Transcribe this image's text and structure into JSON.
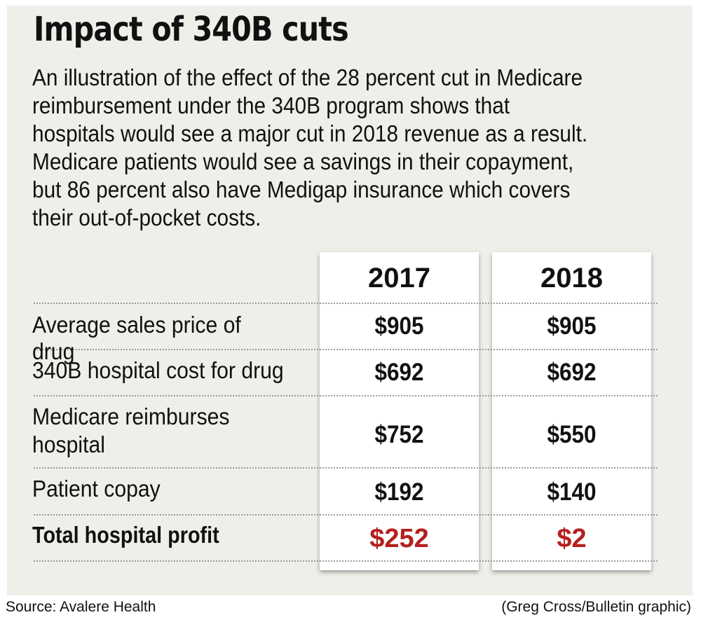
{
  "title": "Impact of 340B cuts",
  "description": "An illustration of the effect of the 28 percent cut in Medicare reimbursement under the 340B program shows that hospitals would see a major cut in 2018 revenue as a result. Medicare patients would see a savings in their copayment, but 86 percent also have Medigap insurance which covers their out-of-pocket costs.",
  "table": {
    "years": [
      "2017",
      "2018"
    ],
    "rows": [
      {
        "label": "Average sales price of drug",
        "v2017": "$905",
        "v2018": "$905"
      },
      {
        "label": "340B hospital cost for drug",
        "v2017": "$692",
        "v2018": "$692"
      },
      {
        "label_line1": "Medicare reimburses",
        "label_line2": "hospital",
        "v2017": "$752",
        "v2018": "$550"
      },
      {
        "label": "Patient copay",
        "v2017": "$192",
        "v2018": "$140"
      },
      {
        "label": "Total hospital profit",
        "v2017": "$252",
        "v2018": "$2"
      }
    ],
    "highlight_color": "#b51f1f"
  },
  "footer": {
    "source": "Source: Avalere Health",
    "credit": "(Greg Cross/Bulletin graphic)"
  }
}
